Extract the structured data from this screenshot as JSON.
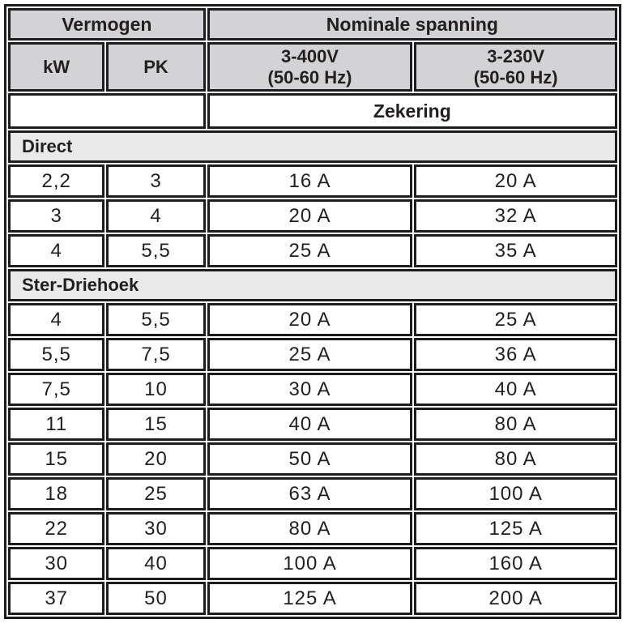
{
  "table": {
    "header": {
      "vermogen": "Vermogen",
      "nominale_spanning": "Nominale spanning",
      "kw": "kW",
      "pk": "PK",
      "v400_line1": "3-400V",
      "v400_line2": "(50-60 Hz)",
      "v230_line1": "3-230V",
      "v230_line2": "(50-60 Hz)",
      "zekering": "Zekering"
    },
    "sections": [
      {
        "label": "Direct",
        "rows": [
          [
            "2,2",
            "3",
            "16 A",
            "20 A"
          ],
          [
            "3",
            "4",
            "20 A",
            "32 A"
          ],
          [
            "4",
            "5,5",
            "25 A",
            "35 A"
          ]
        ]
      },
      {
        "label": "Ster-Driehoek",
        "rows": [
          [
            "4",
            "5,5",
            "20 A",
            "25 A"
          ],
          [
            "5,5",
            "7,5",
            "25 A",
            "36 A"
          ],
          [
            "7,5",
            "10",
            "30 A",
            "40 A"
          ],
          [
            "11",
            "15",
            "40 A",
            "80 A"
          ],
          [
            "15",
            "20",
            "50 A",
            "80 A"
          ],
          [
            "18",
            "25",
            "63 A",
            "100 A"
          ],
          [
            "22",
            "30",
            "80 A",
            "125 A"
          ],
          [
            "30",
            "40",
            "100 A",
            "160 A"
          ],
          [
            "37",
            "50",
            "125 A",
            "200 A"
          ]
        ]
      }
    ],
    "colors": {
      "header_bg": "#d3d3d5",
      "section_bg": "#e9e9e9",
      "border": "#1d1d1f",
      "text": "#231f20"
    }
  }
}
